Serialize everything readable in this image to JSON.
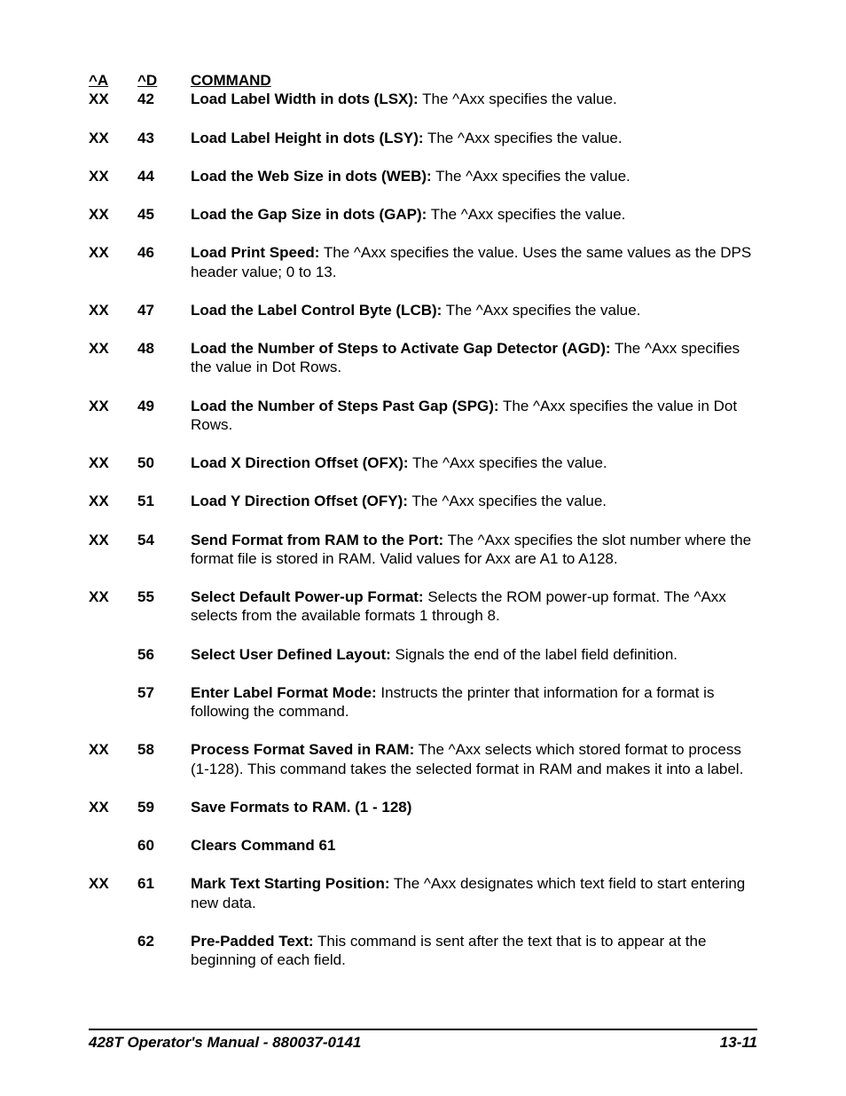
{
  "headers": {
    "a": "^A",
    "d": "^D",
    "cmd": "COMMAND"
  },
  "rows": [
    {
      "a": "XX",
      "d": "42",
      "title": "Load Label Width in dots (LSX):",
      "desc": " The ^Axx specifies the value."
    },
    {
      "a": "XX",
      "d": "43",
      "title": "Load Label Height in dots (LSY):",
      "desc": " The ^Axx specifies the value."
    },
    {
      "a": "XX",
      "d": "44",
      "title": "Load the Web Size in dots (WEB):",
      "desc": " The ^Axx specifies the value."
    },
    {
      "a": "XX",
      "d": "45",
      "title": "Load the Gap Size in dots (GAP):",
      "desc": " The ^Axx specifies the value."
    },
    {
      "a": "XX",
      "d": "46",
      "title": "Load Print Speed:",
      "desc": " The ^Axx specifies the value.  Uses the same values as the DPS header value; 0 to 13."
    },
    {
      "a": "XX",
      "d": "47",
      "title": "Load the Label Control Byte (LCB):",
      "desc": " The ^Axx specifies the value."
    },
    {
      "a": "XX",
      "d": "48",
      "title": "Load the Number of Steps to Activate Gap Detector (AGD):",
      "desc": " The ^Axx specifies the value in Dot Rows."
    },
    {
      "a": "XX",
      "d": "49",
      "title": "Load the Number of Steps Past Gap (SPG):",
      "desc": " The ^Axx specifies the value in  Dot Rows."
    },
    {
      "a": "XX",
      "d": "50",
      "title": "Load X Direction Offset (OFX):",
      "desc": " The ^Axx specifies the value."
    },
    {
      "a": "XX",
      "d": "51",
      "title": "Load Y Direction Offset (OFY):",
      "desc": " The ^Axx specifies the value."
    },
    {
      "a": "XX",
      "d": "54",
      "title": "Send Format from RAM to the Port:",
      "desc": " The ^Axx specifies the slot number where the format file is stored in RAM.  Valid values for Axx are A1 to A128."
    },
    {
      "a": "XX",
      "d": "55",
      "title": "Select Default Power-up Format:",
      "desc": " Selects the ROM power-up format.  The ^Axx selects from the available formats 1 through 8."
    },
    {
      "a": "",
      "d": "56",
      "title": "Select User Defined Layout:",
      "desc": " Signals the end of the label field definition."
    },
    {
      "a": "",
      "d": "57",
      "title": "Enter Label Format Mode:",
      "desc": "  Instructs the printer that information for a format is following the command."
    },
    {
      "a": "XX",
      "d": "58",
      "title": "Process Format Saved in RAM:",
      "desc": " The ^Axx selects which stored format to process (1-128).  This command takes the selected format in RAM and makes  it into a label."
    },
    {
      "a": "XX",
      "d": "59",
      "title": "Save Formats to RAM. (1 - 128)",
      "desc": ""
    },
    {
      "a": "",
      "d": "60",
      "title": "Clears Command 61",
      "desc": ""
    },
    {
      "a": "XX",
      "d": "61",
      "title": "Mark Text Starting Position:",
      "desc": " The ^Axx designates which text field to start entering new data."
    },
    {
      "a": "",
      "d": "62",
      "title": "Pre-Padded Text:",
      "desc": " This command is sent after the text that is to appear at the beginning of each field."
    }
  ],
  "footer": {
    "left": "428T Operator's Manual - 880037-0141",
    "right": "13-11"
  }
}
